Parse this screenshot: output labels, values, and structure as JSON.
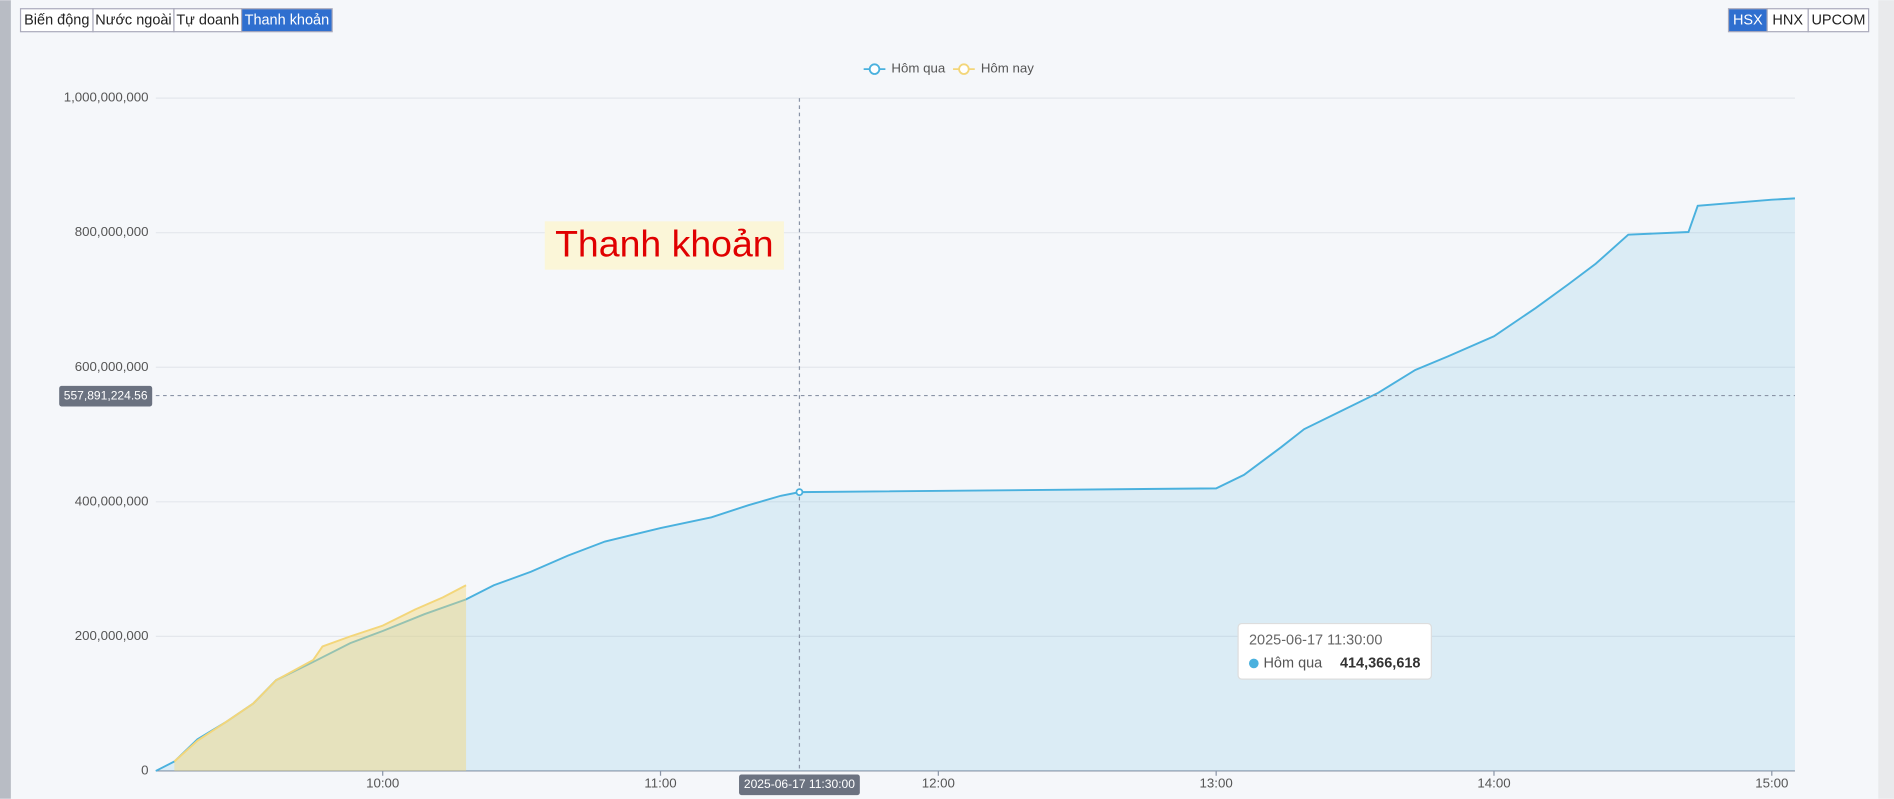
{
  "tabs": [
    "Biến động",
    "Nước ngoài",
    "Tự doanh",
    "Thanh khoản"
  ],
  "exchanges": [
    "HSX",
    "HNX",
    "UPCOM"
  ],
  "chart_data": {
    "type": "area",
    "annotation": "Thanh khoản",
    "xlim": [
      "09:11",
      "15:05"
    ],
    "xticks": [
      "10:00",
      "11:00",
      "12:00",
      "13:00",
      "14:00",
      "15:00"
    ],
    "ylim": [
      0,
      1000000000
    ],
    "yticks": [
      0,
      {
        "value": 200000000,
        "label": "200,000,000"
      },
      {
        "value": 400000000,
        "label": "400,000,000"
      },
      {
        "value": 600000000,
        "label": "600,000,000"
      },
      {
        "value": 800000000,
        "label": "800,000,000"
      },
      {
        "value": 1000000000,
        "label": "1,000,000,000"
      }
    ],
    "grid": true,
    "series": [
      {
        "name": "Hôm qua",
        "color": "#4ab1de",
        "x": [
          "09:11",
          "09:15",
          "09:20",
          "09:26",
          "09:32",
          "09:37",
          "09:45",
          "09:53",
          "10:00",
          "10:09",
          "10:18",
          "10:24",
          "10:32",
          "10:40",
          "10:48",
          "11:00",
          "11:11",
          "11:19",
          "11:26",
          "11:30",
          "13:00",
          "13:06",
          "13:14",
          "13:19",
          "13:27",
          "13:35",
          "13:43",
          "13:50",
          "14:00",
          "14:09",
          "14:16",
          "14:22",
          "14:29",
          "14:42",
          "14:44",
          "15:00",
          "15:05"
        ],
        "values": [
          0,
          14000000,
          47000000,
          72000000,
          100000000,
          135000000,
          162000000,
          190000000,
          208000000,
          233000000,
          255000000,
          276000000,
          296000000,
          320000000,
          341000000,
          361000000,
          377000000,
          395000000,
          409000000,
          414366618,
          420000000,
          440000000,
          481000000,
          508000000,
          535000000,
          562000000,
          596000000,
          616000000,
          646000000,
          688000000,
          723000000,
          754000000,
          797000000,
          801000000,
          840000000,
          849000000,
          851000000
        ]
      },
      {
        "name": "Hôm nay",
        "color": "#f3d67a",
        "x": [
          "09:15",
          "09:20",
          "09:26",
          "09:32",
          "09:37",
          "09:45",
          "09:47",
          "09:53",
          "10:00",
          "10:07",
          "10:13",
          "10:18"
        ],
        "values": [
          14000000,
          45000000,
          72000000,
          100000000,
          135000000,
          165000000,
          185000000,
          200000000,
          216000000,
          240000000,
          258000000,
          276000000
        ]
      }
    ],
    "crosshair": {
      "y": {
        "value": 557891224.56,
        "label": "557,891,224.56"
      },
      "x_label": "2025-06-17 11:30:00"
    },
    "tooltip": {
      "title": "2025-06-17 11:30:00",
      "series": "Hôm qua",
      "value": {
        "value": 414366618,
        "label": "414,366,618"
      }
    }
  }
}
